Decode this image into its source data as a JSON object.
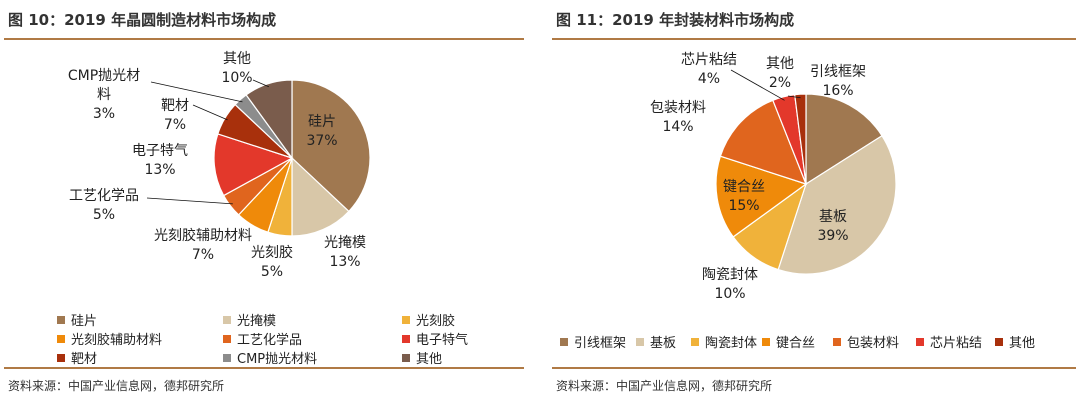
{
  "panels": [
    {
      "title": "图 10：2019 年晶圆制造材料市场构成",
      "source": "资料来源：中国产业信息网，德邦研究所",
      "chart_data": {
        "type": "pie",
        "title": "图 10：2019 年晶圆制造材料市场构成",
        "series": [
          {
            "name": "2019 年晶圆制造材料市场构成",
            "slices": [
              {
                "label": "硅片",
                "value": 37,
                "pct": "37%",
                "color": "#a07850"
              },
              {
                "label": "光掩模",
                "value": 13,
                "pct": "13%",
                "color": "#d8c7a8"
              },
              {
                "label": "光刻胶",
                "value": 5,
                "pct": "5%",
                "color": "#f0b23a"
              },
              {
                "label": "光刻胶辅助材料",
                "value": 7,
                "pct": "7%",
                "color": "#ef8a0a"
              },
              {
                "label": "工艺化学品",
                "value": 5,
                "pct": "5%",
                "color": "#e0651e"
              },
              {
                "label": "电子特气",
                "value": 13,
                "pct": "13%",
                "color": "#e3382b"
              },
              {
                "label": "靶材",
                "value": 7,
                "pct": "7%",
                "color": "#a8300c"
              },
              {
                "label": "CMP抛光材料",
                "value": 3,
                "pct": "3%",
                "color": "#8c8c8c"
              },
              {
                "label": "其他",
                "value": 10,
                "pct": "10%",
                "color": "#7a5c4c"
              }
            ]
          }
        ],
        "legend": [
          "硅片",
          "光掩模",
          "光刻胶",
          "光刻胶辅助材料",
          "工艺化学品",
          "电子特气",
          "靶材",
          "CMP抛光材料",
          "其他"
        ],
        "legend_position": "bottom"
      }
    },
    {
      "title": "图 11：2019 年封装材料市场构成",
      "source": "资料来源：中国产业信息网，德邦研究所",
      "chart_data": {
        "type": "pie",
        "title": "图 11：2019 年封装材料市场构成",
        "series": [
          {
            "name": "2019 年封装材料市场构成",
            "slices": [
              {
                "label": "引线框架",
                "value": 16,
                "pct": "16%",
                "color": "#a07850"
              },
              {
                "label": "基板",
                "value": 39,
                "pct": "39%",
                "color": "#d8c7a8"
              },
              {
                "label": "陶瓷封体",
                "value": 10,
                "pct": "10%",
                "color": "#f0b23a"
              },
              {
                "label": "键合丝",
                "value": 15,
                "pct": "15%",
                "color": "#ef8a0a"
              },
              {
                "label": "包装材料",
                "value": 14,
                "pct": "14%",
                "color": "#e0651e"
              },
              {
                "label": "芯片粘结",
                "value": 4,
                "pct": "4%",
                "color": "#e3382b"
              },
              {
                "label": "其他",
                "value": 2,
                "pct": "2%",
                "color": "#a8300c"
              }
            ]
          }
        ],
        "legend": [
          "引线框架",
          "基板",
          "陶瓷封体",
          "键合丝",
          "包装材料",
          "芯片粘结",
          "其他"
        ],
        "legend_position": "bottom"
      }
    }
  ]
}
